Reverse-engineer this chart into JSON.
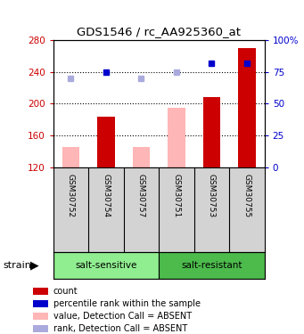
{
  "title": "GDS1546 / rc_AA925360_at",
  "samples": [
    "GSM30752",
    "GSM30754",
    "GSM30757",
    "GSM30751",
    "GSM30753",
    "GSM30755"
  ],
  "groups": [
    "salt-sensitive",
    "salt-sensitive",
    "salt-sensitive",
    "salt-resistant",
    "salt-resistant",
    "salt-resistant"
  ],
  "group_labels": [
    "salt-sensitive",
    "salt-resistant"
  ],
  "group_colors": [
    "#90ee90",
    "#4cbb4c"
  ],
  "bar_bottom": 120,
  "ylim_left": [
    120,
    280
  ],
  "ylim_right": [
    0,
    100
  ],
  "yticks_left": [
    120,
    160,
    200,
    240,
    280
  ],
  "ytick_labels_left": [
    "120",
    "160",
    "200",
    "240",
    "280"
  ],
  "yticks_right": [
    0,
    25,
    50,
    75,
    100
  ],
  "ytick_labels_right": [
    "0",
    "25",
    "50",
    "75",
    "100%"
  ],
  "red_bars_present": [
    null,
    183,
    null,
    null,
    208,
    270
  ],
  "red_bars_absent": [
    145,
    null,
    145,
    195,
    null,
    null
  ],
  "blue_sq_absent": [
    70,
    null,
    70,
    75,
    null,
    null
  ],
  "blue_sq_present": [
    null,
    75,
    null,
    null,
    82,
    82
  ],
  "left_axis_color": "#cc0000",
  "right_axis_color": "#0000cc",
  "sample_bg_color": "#d3d3d3",
  "group_color_sensitive": "#90ee90",
  "group_color_resistant": "#4cbb4c",
  "bar_color_present": "#cc0000",
  "bar_color_absent": "#ffb6b6",
  "sq_color_present": "#0000cc",
  "sq_color_absent": "#aaaadd",
  "legend_labels": [
    "count",
    "percentile rank within the sample",
    "value, Detection Call = ABSENT",
    "rank, Detection Call = ABSENT"
  ],
  "legend_colors": [
    "#cc0000",
    "#0000cc",
    "#ffb6b6",
    "#aaaadd"
  ]
}
